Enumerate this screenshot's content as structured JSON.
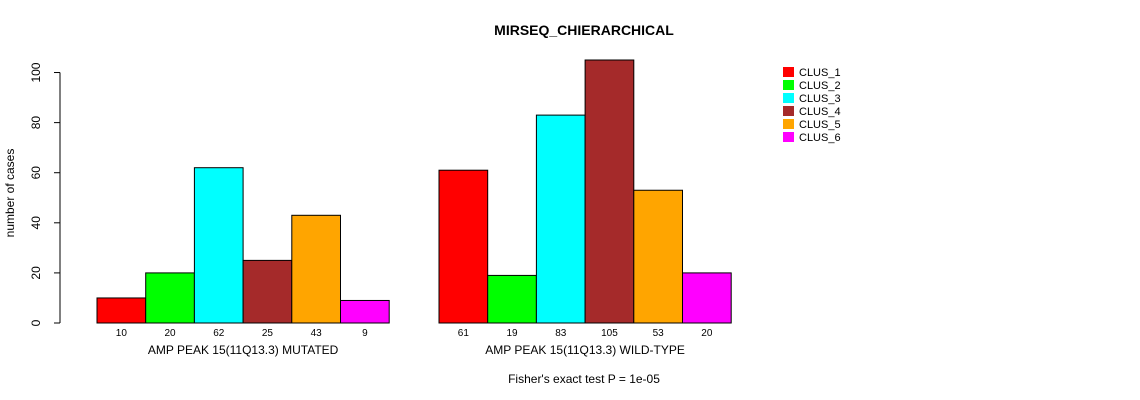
{
  "chart_data": {
    "type": "bar",
    "title": "MIRSEQ_CHIERARCHICAL",
    "ylabel": "number of cases",
    "ylim": [
      0,
      105
    ],
    "yticks": [
      0,
      20,
      40,
      60,
      80,
      100
    ],
    "series_names": [
      "CLUS_1",
      "CLUS_2",
      "CLUS_3",
      "CLUS_4",
      "CLUS_5",
      "CLUS_6"
    ],
    "colors": [
      "#ff0000",
      "#00ff00",
      "#00ffff",
      "#a52a2a",
      "#ffa500",
      "#ff00ff"
    ],
    "groups": [
      {
        "label": "AMP PEAK 15(11Q13.3) MUTATED",
        "values": [
          10,
          20,
          62,
          25,
          43,
          9
        ]
      },
      {
        "label": "AMP PEAK 15(11Q13.3) WILD-TYPE",
        "values": [
          61,
          19,
          83,
          105,
          53,
          20
        ]
      }
    ],
    "footnote": "Fisher's exact test P = 1e-05",
    "legend_position": "top-right"
  }
}
